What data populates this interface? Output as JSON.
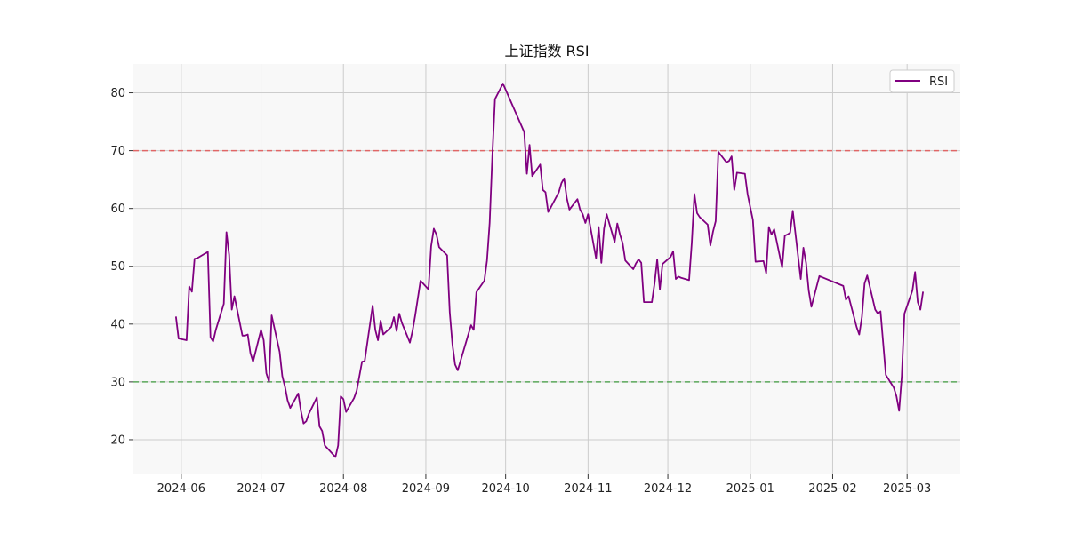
{
  "chart_data": {
    "type": "line",
    "title": "上证指数 RSI",
    "xlabel": "",
    "ylabel": "",
    "x_range": [
      "2024-05-14",
      "2025-03-21"
    ],
    "ylim": [
      14,
      85
    ],
    "x_ticks": [
      "2024-06-01",
      "2024-07-01",
      "2024-08-01",
      "2024-09-01",
      "2024-10-01",
      "2024-11-01",
      "2024-12-01",
      "2025-01-01",
      "2025-02-01",
      "2025-03-01"
    ],
    "x_tick_labels": [
      "2024-06",
      "2024-07",
      "2024-08",
      "2024-09",
      "2024-10",
      "2024-11",
      "2024-12",
      "2025-01",
      "2025-02",
      "2025-03"
    ],
    "y_ticks": [
      20,
      30,
      40,
      50,
      60,
      70,
      80
    ],
    "y_tick_labels": [
      "20",
      "30",
      "40",
      "50",
      "60",
      "70",
      "80"
    ],
    "grid": true,
    "legend": {
      "position": "top-right",
      "entries": [
        "RSI"
      ]
    },
    "reference_lines": [
      {
        "y": 70,
        "color": "#e06666",
        "style": "dashed"
      },
      {
        "y": 30,
        "color": "#5aa85a",
        "style": "dashed"
      }
    ],
    "series": [
      {
        "name": "RSI",
        "color": "#800080",
        "points": [
          [
            "2024-05-30",
            41.3
          ],
          [
            "2024-05-31",
            37.5
          ],
          [
            "2024-06-03",
            37.2
          ],
          [
            "2024-06-04",
            46.5
          ],
          [
            "2024-06-05",
            45.6
          ],
          [
            "2024-06-06",
            51.3
          ],
          [
            "2024-06-07",
            51.4
          ],
          [
            "2024-06-11",
            52.5
          ],
          [
            "2024-06-12",
            37.7
          ],
          [
            "2024-06-13",
            37.0
          ],
          [
            "2024-06-14",
            39.0
          ],
          [
            "2024-06-17",
            43.5
          ],
          [
            "2024-06-18",
            55.9
          ],
          [
            "2024-06-19",
            52.0
          ],
          [
            "2024-06-20",
            42.5
          ],
          [
            "2024-06-21",
            44.8
          ],
          [
            "2024-06-24",
            38.0
          ],
          [
            "2024-06-25",
            38.0
          ],
          [
            "2024-06-26",
            38.2
          ],
          [
            "2024-06-27",
            35.0
          ],
          [
            "2024-06-28",
            33.5
          ],
          [
            "2024-07-01",
            39.0
          ],
          [
            "2024-07-02",
            37.2
          ],
          [
            "2024-07-03",
            31.5
          ],
          [
            "2024-07-04",
            30.0
          ],
          [
            "2024-07-05",
            41.5
          ],
          [
            "2024-07-08",
            35.2
          ],
          [
            "2024-07-09",
            31.0
          ],
          [
            "2024-07-10",
            29.2
          ],
          [
            "2024-07-11",
            26.8
          ],
          [
            "2024-07-12",
            25.5
          ],
          [
            "2024-07-15",
            28.0
          ],
          [
            "2024-07-16",
            25.0
          ],
          [
            "2024-07-17",
            22.8
          ],
          [
            "2024-07-18",
            23.2
          ],
          [
            "2024-07-19",
            24.5
          ],
          [
            "2024-07-22",
            27.3
          ],
          [
            "2024-07-23",
            22.3
          ],
          [
            "2024-07-24",
            21.5
          ],
          [
            "2024-07-25",
            19.0
          ],
          [
            "2024-07-29",
            17.0
          ],
          [
            "2024-07-30",
            19.0
          ],
          [
            "2024-07-31",
            27.5
          ],
          [
            "2024-08-01",
            27.0
          ],
          [
            "2024-08-02",
            24.8
          ],
          [
            "2024-08-05",
            27.2
          ],
          [
            "2024-08-06",
            28.5
          ],
          [
            "2024-08-07",
            31.0
          ],
          [
            "2024-08-08",
            33.5
          ],
          [
            "2024-08-09",
            33.6
          ],
          [
            "2024-08-12",
            43.2
          ],
          [
            "2024-08-13",
            39.0
          ],
          [
            "2024-08-14",
            37.2
          ],
          [
            "2024-08-15",
            40.6
          ],
          [
            "2024-08-16",
            38.2
          ],
          [
            "2024-08-19",
            39.5
          ],
          [
            "2024-08-20",
            41.2
          ],
          [
            "2024-08-21",
            38.8
          ],
          [
            "2024-08-22",
            41.8
          ],
          [
            "2024-08-23",
            40.2
          ],
          [
            "2024-08-26",
            36.8
          ],
          [
            "2024-08-27",
            38.8
          ],
          [
            "2024-08-28",
            41.5
          ],
          [
            "2024-08-29",
            44.5
          ],
          [
            "2024-08-30",
            47.5
          ],
          [
            "2024-09-02",
            46.0
          ],
          [
            "2024-09-03",
            53.5
          ],
          [
            "2024-09-04",
            56.5
          ],
          [
            "2024-09-05",
            55.5
          ],
          [
            "2024-09-06",
            53.3
          ],
          [
            "2024-09-09",
            51.9
          ],
          [
            "2024-09-10",
            42.0
          ],
          [
            "2024-09-11",
            36.5
          ],
          [
            "2024-09-12",
            33.0
          ],
          [
            "2024-09-13",
            32.0
          ],
          [
            "2024-09-18",
            39.8
          ],
          [
            "2024-09-19",
            39.0
          ],
          [
            "2024-09-20",
            45.5
          ],
          [
            "2024-09-23",
            47.5
          ],
          [
            "2024-09-24",
            51.0
          ],
          [
            "2024-09-25",
            57.5
          ],
          [
            "2024-09-26",
            69.0
          ],
          [
            "2024-09-27",
            78.9
          ],
          [
            "2024-09-30",
            81.6
          ],
          [
            "2024-10-08",
            73.2
          ],
          [
            "2024-10-09",
            66.0
          ],
          [
            "2024-10-10",
            71.0
          ],
          [
            "2024-10-11",
            65.6
          ],
          [
            "2024-10-14",
            67.6
          ],
          [
            "2024-10-15",
            63.2
          ],
          [
            "2024-10-16",
            62.8
          ],
          [
            "2024-10-17",
            59.4
          ],
          [
            "2024-10-18",
            60.2
          ],
          [
            "2024-10-21",
            62.8
          ],
          [
            "2024-10-22",
            64.4
          ],
          [
            "2024-10-23",
            65.2
          ],
          [
            "2024-10-24",
            61.8
          ],
          [
            "2024-10-25",
            59.8
          ],
          [
            "2024-10-28",
            61.6
          ],
          [
            "2024-10-29",
            59.8
          ],
          [
            "2024-10-30",
            59.0
          ],
          [
            "2024-10-31",
            57.5
          ],
          [
            "2024-11-01",
            59.0
          ],
          [
            "2024-11-04",
            51.4
          ],
          [
            "2024-11-05",
            56.8
          ],
          [
            "2024-11-06",
            50.6
          ],
          [
            "2024-11-07",
            56.5
          ],
          [
            "2024-11-08",
            59.0
          ],
          [
            "2024-11-11",
            54.2
          ],
          [
            "2024-11-12",
            57.4
          ],
          [
            "2024-11-13",
            55.5
          ],
          [
            "2024-11-14",
            54.0
          ],
          [
            "2024-11-15",
            51.0
          ],
          [
            "2024-11-18",
            49.5
          ],
          [
            "2024-11-19",
            50.5
          ],
          [
            "2024-11-20",
            51.2
          ],
          [
            "2024-11-21",
            50.6
          ],
          [
            "2024-11-22",
            43.8
          ],
          [
            "2024-11-25",
            43.8
          ],
          [
            "2024-11-26",
            47.0
          ],
          [
            "2024-11-27",
            51.2
          ],
          [
            "2024-11-28",
            46.0
          ],
          [
            "2024-11-29",
            50.4
          ],
          [
            "2024-12-02",
            51.6
          ],
          [
            "2024-12-03",
            52.6
          ],
          [
            "2024-12-04",
            47.8
          ],
          [
            "2024-12-05",
            48.2
          ],
          [
            "2024-12-06",
            48.0
          ],
          [
            "2024-12-09",
            47.6
          ],
          [
            "2024-12-10",
            54.0
          ],
          [
            "2024-12-11",
            62.5
          ],
          [
            "2024-12-12",
            59.2
          ],
          [
            "2024-12-13",
            58.5
          ],
          [
            "2024-12-16",
            57.2
          ],
          [
            "2024-12-17",
            53.6
          ],
          [
            "2024-12-18",
            56.0
          ],
          [
            "2024-12-19",
            57.8
          ],
          [
            "2024-12-20",
            69.8
          ],
          [
            "2024-12-23",
            68.0
          ],
          [
            "2024-12-24",
            68.2
          ],
          [
            "2024-12-25",
            69.0
          ],
          [
            "2024-12-26",
            63.2
          ],
          [
            "2024-12-27",
            66.2
          ],
          [
            "2024-12-30",
            66.0
          ],
          [
            "2024-12-31",
            62.5
          ],
          [
            "2025-01-02",
            58.0
          ],
          [
            "2025-01-03",
            50.8
          ],
          [
            "2025-01-06",
            50.9
          ],
          [
            "2025-01-07",
            48.8
          ],
          [
            "2025-01-08",
            56.8
          ],
          [
            "2025-01-09",
            55.5
          ],
          [
            "2025-01-10",
            56.4
          ],
          [
            "2025-01-13",
            49.8
          ],
          [
            "2025-01-14",
            55.3
          ],
          [
            "2025-01-15",
            55.5
          ],
          [
            "2025-01-16",
            55.8
          ],
          [
            "2025-01-17",
            59.6
          ],
          [
            "2025-01-20",
            47.8
          ],
          [
            "2025-01-21",
            53.2
          ],
          [
            "2025-01-22",
            50.6
          ],
          [
            "2025-01-23",
            45.8
          ],
          [
            "2025-01-24",
            43.0
          ],
          [
            "2025-01-27",
            48.3
          ],
          [
            "2025-02-05",
            46.6
          ],
          [
            "2025-02-06",
            44.2
          ],
          [
            "2025-02-07",
            44.8
          ],
          [
            "2025-02-10",
            39.5
          ],
          [
            "2025-02-11",
            38.2
          ],
          [
            "2025-02-12",
            41.2
          ],
          [
            "2025-02-13",
            47.0
          ],
          [
            "2025-02-14",
            48.4
          ],
          [
            "2025-02-17",
            42.5
          ],
          [
            "2025-02-18",
            41.8
          ],
          [
            "2025-02-19",
            42.2
          ],
          [
            "2025-02-21",
            31.2
          ],
          [
            "2025-02-24",
            29.0
          ],
          [
            "2025-02-25",
            27.5
          ],
          [
            "2025-02-26",
            25.0
          ],
          [
            "2025-02-27",
            31.0
          ],
          [
            "2025-02-28",
            41.8
          ],
          [
            "2025-03-03",
            45.8
          ],
          [
            "2025-03-04",
            49.0
          ],
          [
            "2025-03-05",
            43.8
          ],
          [
            "2025-03-06",
            42.5
          ],
          [
            "2025-03-07",
            45.6
          ]
        ]
      }
    ]
  }
}
